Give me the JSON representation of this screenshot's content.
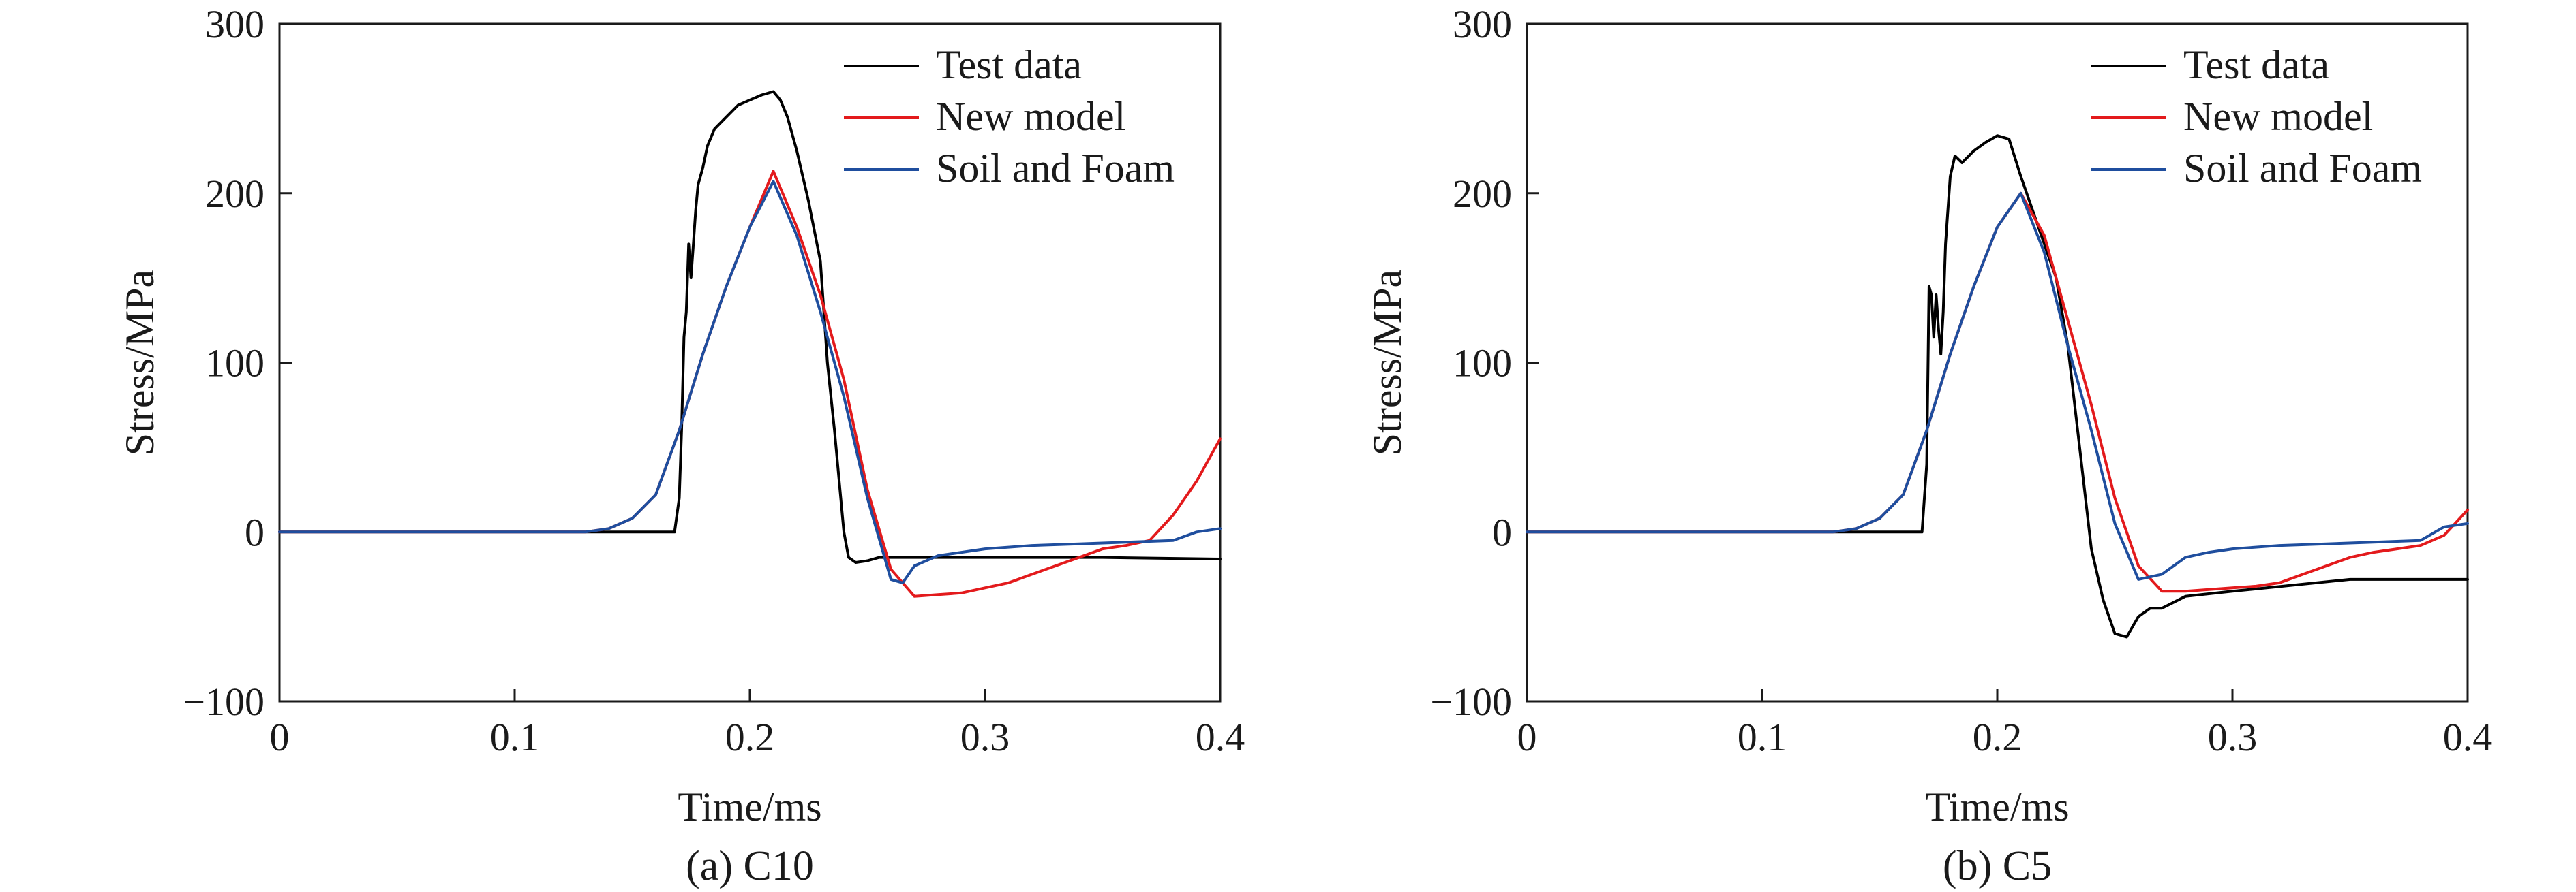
{
  "chart_data": [
    {
      "type": "line",
      "caption": "(a) C10",
      "xlabel": "Time/ms",
      "ylabel": "Stress/MPa",
      "xlim": [
        0,
        0.4
      ],
      "ylim": [
        -100,
        300
      ],
      "xticks": [
        0,
        0.1,
        0.2,
        0.3,
        0.4
      ],
      "xtick_labels": [
        "0",
        "0.1",
        "0.2",
        "0.3",
        "0.4"
      ],
      "yticks": [
        -100,
        0,
        100,
        200,
        300
      ],
      "ytick_labels": [
        "−100",
        "0",
        "100",
        "200",
        "300"
      ],
      "grid": false,
      "legend_position": "top-right",
      "series": [
        {
          "name": "Test data",
          "color": "#000000",
          "x": [
            0,
            0.1,
            0.168,
            0.17,
            0.171,
            0.172,
            0.173,
            0.174,
            0.175,
            0.176,
            0.177,
            0.178,
            0.18,
            0.182,
            0.185,
            0.19,
            0.195,
            0.2,
            0.205,
            0.21,
            0.213,
            0.216,
            0.22,
            0.225,
            0.23,
            0.233,
            0.236,
            0.238,
            0.24,
            0.242,
            0.245,
            0.25,
            0.255,
            0.26,
            0.28,
            0.3,
            0.35,
            0.4
          ],
          "y": [
            0,
            0,
            0,
            20,
            60,
            115,
            130,
            170,
            150,
            170,
            190,
            205,
            215,
            228,
            238,
            245,
            252,
            255,
            258,
            260,
            255,
            245,
            225,
            195,
            160,
            100,
            60,
            30,
            0,
            -15,
            -18,
            -17,
            -15,
            -15,
            -15,
            -15,
            -15,
            -16
          ]
        },
        {
          "name": "New model",
          "color": "#e31a1c",
          "x": [
            0,
            0.13,
            0.14,
            0.15,
            0.16,
            0.17,
            0.18,
            0.19,
            0.2,
            0.21,
            0.22,
            0.23,
            0.24,
            0.25,
            0.26,
            0.27,
            0.28,
            0.29,
            0.3,
            0.31,
            0.32,
            0.33,
            0.34,
            0.35,
            0.36,
            0.37,
            0.38,
            0.39,
            0.4
          ],
          "y": [
            0,
            0,
            2,
            8,
            22,
            60,
            105,
            145,
            180,
            213,
            180,
            140,
            90,
            25,
            -22,
            -38,
            -37,
            -36,
            -33,
            -30,
            -25,
            -20,
            -15,
            -10,
            -8,
            -5,
            10,
            30,
            55
          ]
        },
        {
          "name": "Soil and Foam",
          "color": "#1f4e9e",
          "x": [
            0,
            0.13,
            0.14,
            0.15,
            0.16,
            0.17,
            0.18,
            0.19,
            0.2,
            0.21,
            0.22,
            0.23,
            0.24,
            0.25,
            0.26,
            0.265,
            0.27,
            0.28,
            0.29,
            0.3,
            0.32,
            0.34,
            0.36,
            0.38,
            0.39,
            0.4
          ],
          "y": [
            0,
            0,
            2,
            8,
            22,
            60,
            105,
            145,
            180,
            207,
            175,
            130,
            80,
            20,
            -28,
            -30,
            -20,
            -14,
            -12,
            -10,
            -8,
            -7,
            -6,
            -5,
            0,
            2
          ]
        }
      ]
    },
    {
      "type": "line",
      "caption": "(b) C5",
      "xlabel": "Time/ms",
      "ylabel": "Stress/MPa",
      "xlim": [
        0,
        0.4
      ],
      "ylim": [
        -100,
        300
      ],
      "xticks": [
        0,
        0.1,
        0.2,
        0.3,
        0.4
      ],
      "xtick_labels": [
        "0",
        "0.1",
        "0.2",
        "0.3",
        "0.4"
      ],
      "yticks": [
        -100,
        0,
        100,
        200,
        300
      ],
      "ytick_labels": [
        "−100",
        "0",
        "100",
        "200",
        "300"
      ],
      "grid": false,
      "legend_position": "top-right",
      "series": [
        {
          "name": "Test data",
          "color": "#000000",
          "x": [
            0,
            0.1,
            0.168,
            0.17,
            0.171,
            0.172,
            0.173,
            0.174,
            0.175,
            0.176,
            0.177,
            0.178,
            0.18,
            0.182,
            0.185,
            0.19,
            0.195,
            0.2,
            0.205,
            0.21,
            0.215,
            0.22,
            0.225,
            0.23,
            0.235,
            0.24,
            0.245,
            0.25,
            0.255,
            0.26,
            0.265,
            0.27,
            0.28,
            0.3,
            0.35,
            0.4
          ],
          "y": [
            0,
            0,
            0,
            40,
            145,
            140,
            115,
            140,
            120,
            105,
            130,
            170,
            210,
            222,
            218,
            225,
            230,
            234,
            232,
            210,
            190,
            170,
            150,
            110,
            50,
            -10,
            -40,
            -60,
            -62,
            -50,
            -45,
            -45,
            -38,
            -35,
            -28,
            -28
          ]
        },
        {
          "name": "New model",
          "color": "#e31a1c",
          "x": [
            0,
            0.13,
            0.14,
            0.15,
            0.16,
            0.17,
            0.18,
            0.19,
            0.2,
            0.21,
            0.22,
            0.23,
            0.24,
            0.25,
            0.26,
            0.27,
            0.28,
            0.29,
            0.3,
            0.31,
            0.32,
            0.33,
            0.34,
            0.35,
            0.36,
            0.37,
            0.38,
            0.39,
            0.4
          ],
          "y": [
            0,
            0,
            2,
            8,
            22,
            60,
            105,
            145,
            180,
            200,
            175,
            125,
            75,
            20,
            -20,
            -35,
            -35,
            -34,
            -33,
            -32,
            -30,
            -25,
            -20,
            -15,
            -12,
            -10,
            -8,
            -2,
            13
          ]
        },
        {
          "name": "Soil and Foam",
          "color": "#1f4e9e",
          "x": [
            0,
            0.13,
            0.14,
            0.15,
            0.16,
            0.17,
            0.18,
            0.19,
            0.2,
            0.21,
            0.22,
            0.23,
            0.24,
            0.25,
            0.26,
            0.27,
            0.28,
            0.29,
            0.3,
            0.32,
            0.34,
            0.36,
            0.38,
            0.39,
            0.4
          ],
          "y": [
            0,
            0,
            2,
            8,
            22,
            60,
            105,
            145,
            180,
            200,
            165,
            110,
            60,
            5,
            -28,
            -25,
            -15,
            -12,
            -10,
            -8,
            -7,
            -6,
            -5,
            3,
            5
          ]
        }
      ]
    }
  ]
}
